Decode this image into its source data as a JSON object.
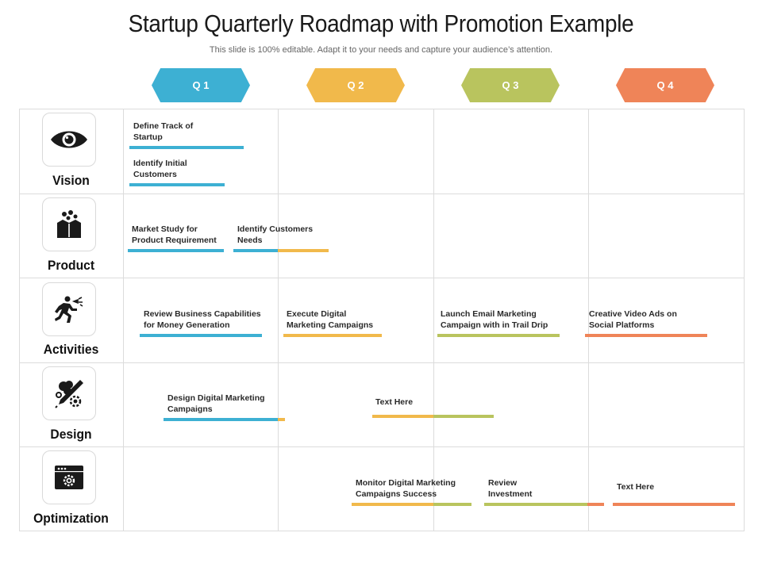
{
  "header": {
    "title": "Startup Quarterly Roadmap with Promotion Example",
    "subtitle": "This slide is 100% editable. Adapt it to your needs and capture your audience’s attention."
  },
  "colors": {
    "q1": "#3db0d3",
    "q2": "#f1b94b",
    "q3": "#b9c45e",
    "q4": "#ef8458"
  },
  "quarters": [
    "Q 1",
    "Q 2",
    "Q 3",
    "Q 4"
  ],
  "rows": [
    {
      "label": "Vision",
      "icon": "eye-icon"
    },
    {
      "label": "Product",
      "icon": "product-box-icon"
    },
    {
      "label": "Activities",
      "icon": "running-person-icon"
    },
    {
      "label": "Design",
      "icon": "design-tools-icon"
    },
    {
      "label": "Optimization",
      "icon": "browser-settings-icon"
    }
  ],
  "tasks": [
    {
      "label": "Define Track of\nStartup",
      "colors": [
        "q1"
      ]
    },
    {
      "label": "Identify Initial\nCustomers",
      "colors": [
        "q1"
      ]
    },
    {
      "label": "Market Study for\nProduct Requirement",
      "colors": [
        "q1"
      ]
    },
    {
      "label": "Identify Customers\nNeeds",
      "colors": [
        "q1",
        "q2"
      ]
    },
    {
      "label": "Review Business Capabilities\nfor Money Generation",
      "colors": [
        "q1"
      ]
    },
    {
      "label": "Execute Digital\nMarketing Campaigns",
      "colors": [
        "q2"
      ]
    },
    {
      "label": "Launch Email Marketing\nCampaign with in Trail Drip",
      "colors": [
        "q3"
      ]
    },
    {
      "label": "Creative Video Ads on\nSocial Platforms",
      "colors": [
        "q4"
      ]
    },
    {
      "label": "Design Digital Marketing\nCampaigns",
      "colors": [
        "q1",
        "q2"
      ]
    },
    {
      "label": "Text Here",
      "colors": [
        "q2",
        "q3"
      ]
    },
    {
      "label": "Monitor Digital Marketing\nCampaigns Success",
      "colors": [
        "q2",
        "q3"
      ]
    },
    {
      "label": "Review\nInvestment",
      "colors": [
        "q3",
        "q4"
      ]
    },
    {
      "label": "Text Here",
      "colors": [
        "q4"
      ]
    }
  ]
}
